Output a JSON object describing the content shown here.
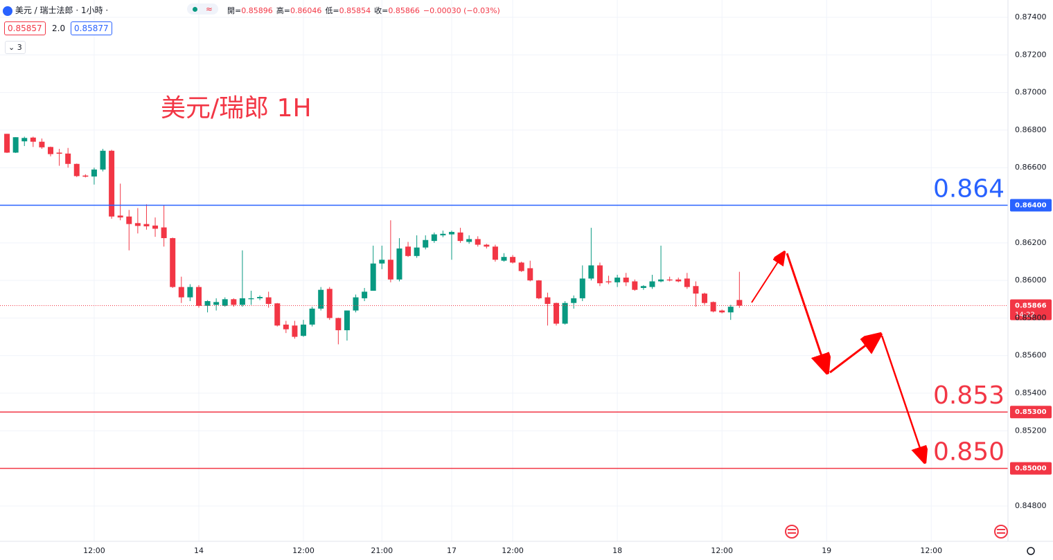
{
  "header": {
    "symbol": "美元 / 瑞士法郎 · 1小時 ·",
    "status_icon": "≈",
    "ohlc": [
      {
        "label": "開=",
        "value": "0.85896"
      },
      {
        "label": "高=",
        "value": "0.86046"
      },
      {
        "label": "低=",
        "value": "0.85854"
      },
      {
        "label": "收=",
        "value": "0.85866"
      }
    ],
    "change": "−0.00030 (−0.03%)",
    "bid": "0.85857",
    "spread": "2.0",
    "ask": "0.85877",
    "indicators": "3"
  },
  "chart_data": {
    "type": "candlestick",
    "annotation": "美元/瑞郎 1H",
    "up_color": "#089981",
    "down_color": "#f23645",
    "grid": true,
    "open": [
      0.8678,
      0.8668,
      0.8674,
      0.8676,
      0.86738,
      0.8671,
      0.8668,
      0.86675,
      0.8662,
      0.86558,
      0.86553,
      0.8659,
      0.8669,
      0.86345,
      0.8634,
      0.86305,
      0.863,
      0.86292,
      0.86282,
      0.86225,
      0.85965,
      0.8591,
      0.85965,
      0.85865,
      0.8587,
      0.85865,
      0.859,
      0.8587,
      0.859,
      0.85905,
      0.8591,
      0.85878,
      0.85765,
      0.8576,
      0.85705,
      0.85765,
      0.8585,
      0.85955,
      0.858,
      0.85735,
      0.8584,
      0.85905,
      0.85945,
      0.8609,
      0.8611,
      0.86005,
      0.8618,
      0.8613,
      0.86175,
      0.8621,
      0.8624,
      0.86245,
      0.86255,
      0.86205,
      0.8622,
      0.8619,
      0.8618,
      0.86105,
      0.86125,
      0.86095,
      0.86065,
      0.86,
      0.8591,
      0.8588,
      0.8577,
      0.8588,
      0.85905,
      0.8601,
      0.8608,
      0.85995,
      0.8599,
      0.86015,
      0.85995,
      0.8596,
      0.85965,
      0.85995,
      0.86005,
      0.86005,
      0.8601,
      0.8597,
      0.8593,
      0.85885,
      0.8584,
      0.8583,
      0.85896
    ],
    "high": [
      0.8678,
      0.86762,
      0.86765,
      0.86765,
      0.86755,
      0.86712,
      0.867,
      0.86705,
      0.86622,
      0.86565,
      0.866,
      0.867,
      0.86695,
      0.86515,
      0.86375,
      0.86385,
      0.86405,
      0.86335,
      0.864,
      0.86228,
      0.8602,
      0.8598,
      0.85975,
      0.85895,
      0.85905,
      0.8591,
      0.85905,
      0.8616,
      0.85945,
      0.8592,
      0.8594,
      0.8588,
      0.85785,
      0.85785,
      0.8579,
      0.8586,
      0.85965,
      0.85965,
      0.85802,
      0.8584,
      0.85925,
      0.8596,
      0.86185,
      0.86185,
      0.8632,
      0.86225,
      0.86205,
      0.8624,
      0.8624,
      0.86255,
      0.86265,
      0.86265,
      0.8628,
      0.8624,
      0.86235,
      0.86195,
      0.8619,
      0.86145,
      0.86135,
      0.861,
      0.86105,
      0.86002,
      0.85935,
      0.85882,
      0.8589,
      0.8592,
      0.8608,
      0.8628,
      0.86095,
      0.86025,
      0.8603,
      0.8604,
      0.86005,
      0.85975,
      0.8603,
      0.86185,
      0.8602,
      0.86015,
      0.8604,
      0.85995,
      0.85935,
      0.85888,
      0.85845,
      0.8587,
      0.86046
    ],
    "low": [
      0.86678,
      0.86678,
      0.86715,
      0.8671,
      0.867,
      0.8666,
      0.8661,
      0.866,
      0.8655,
      0.86548,
      0.8651,
      0.8658,
      0.86328,
      0.8632,
      0.8616,
      0.8625,
      0.8627,
      0.86232,
      0.8618,
      0.8596,
      0.8588,
      0.8589,
      0.85855,
      0.8583,
      0.8584,
      0.8586,
      0.8586,
      0.8586,
      0.8587,
      0.85895,
      0.85855,
      0.85755,
      0.8572,
      0.8569,
      0.857,
      0.85755,
      0.8584,
      0.8579,
      0.8566,
      0.8568,
      0.8583,
      0.8589,
      0.85945,
      0.8606,
      0.8599,
      0.85995,
      0.86125,
      0.8612,
      0.86165,
      0.862,
      0.8623,
      0.8611,
      0.862,
      0.86195,
      0.8618,
      0.8617,
      0.861,
      0.861,
      0.8609,
      0.86045,
      0.85995,
      0.859,
      0.8576,
      0.8576,
      0.85765,
      0.8585,
      0.8589,
      0.86,
      0.8597,
      0.8598,
      0.85965,
      0.8597,
      0.85945,
      0.8595,
      0.85955,
      0.8599,
      0.85995,
      0.8599,
      0.85955,
      0.8586,
      0.8587,
      0.8583,
      0.85825,
      0.8579,
      0.85854
    ],
    "close": [
      0.8668,
      0.86762,
      0.86758,
      0.86738,
      0.86708,
      0.86672,
      0.86674,
      0.8662,
      0.86555,
      0.86552,
      0.8659,
      0.8669,
      0.8634,
      0.86335,
      0.863,
      0.8629,
      0.86288,
      0.86275,
      0.86225,
      0.85965,
      0.8591,
      0.85965,
      0.85865,
      0.8589,
      0.85885,
      0.859,
      0.8587,
      0.85905,
      0.85905,
      0.85912,
      0.85875,
      0.8576,
      0.8574,
      0.857,
      0.85765,
      0.8585,
      0.8595,
      0.858,
      0.85735,
      0.8584,
      0.8591,
      0.8594,
      0.8609,
      0.8611,
      0.86005,
      0.8617,
      0.8613,
      0.86175,
      0.86215,
      0.86245,
      0.86248,
      0.86258,
      0.8621,
      0.8622,
      0.8619,
      0.8618,
      0.8611,
      0.86125,
      0.86095,
      0.8605,
      0.86,
      0.85905,
      0.85875,
      0.8577,
      0.8588,
      0.85905,
      0.8601,
      0.8608,
      0.85985,
      0.8599,
      0.86015,
      0.8599,
      0.8595,
      0.8597,
      0.85995,
      0.86005,
      0.86,
      0.85995,
      0.85965,
      0.8593,
      0.8588,
      0.85835,
      0.8583,
      0.8586,
      0.85866
    ],
    "xlim": [
      -0.8,
      114.8
    ],
    "xticks": [
      {
        "value": 10,
        "label": "12:00"
      },
      {
        "value": 22,
        "label": "14"
      },
      {
        "value": 34,
        "label": "12:00"
      },
      {
        "value": 43,
        "label": "21:00"
      },
      {
        "value": 51,
        "label": "17"
      },
      {
        "value": 58,
        "label": "12:00"
      },
      {
        "value": 70,
        "label": "18"
      },
      {
        "value": 82,
        "label": "12:00"
      },
      {
        "value": 94,
        "label": "19"
      },
      {
        "value": 106,
        "label": "12:00"
      }
    ],
    "ylim": [
      0.84612,
      0.87492
    ],
    "yticks": [
      {
        "value": 0.874,
        "label": "0.87400"
      },
      {
        "value": 0.872,
        "label": "0.87200"
      },
      {
        "value": 0.87,
        "label": "0.87000"
      },
      {
        "value": 0.868,
        "label": "0.86800"
      },
      {
        "value": 0.866,
        "label": "0.86600"
      },
      {
        "value": 0.862,
        "label": "0.86200"
      },
      {
        "value": 0.86,
        "label": "0.86000"
      },
      {
        "value": 0.858,
        "label": "0.85800"
      },
      {
        "value": 0.856,
        "label": "0.85600"
      },
      {
        "value": 0.854,
        "label": "0.85400"
      },
      {
        "value": 0.852,
        "label": "0.85200"
      },
      {
        "value": 0.848,
        "label": "0.84800"
      }
    ],
    "levels": [
      {
        "value": 0.864,
        "label": "0.86400",
        "text": "0.864",
        "color": "#2962ff"
      },
      {
        "value": 0.853,
        "label": "0.85300",
        "text": "0.853",
        "color": "#f23645"
      },
      {
        "value": 0.85,
        "label": "0.85000",
        "text": "0.850",
        "color": "#f23645"
      }
    ],
    "last": {
      "value": 0.85866,
      "label": "0.85866",
      "time": "14:22",
      "color": "#f23645"
    }
  }
}
